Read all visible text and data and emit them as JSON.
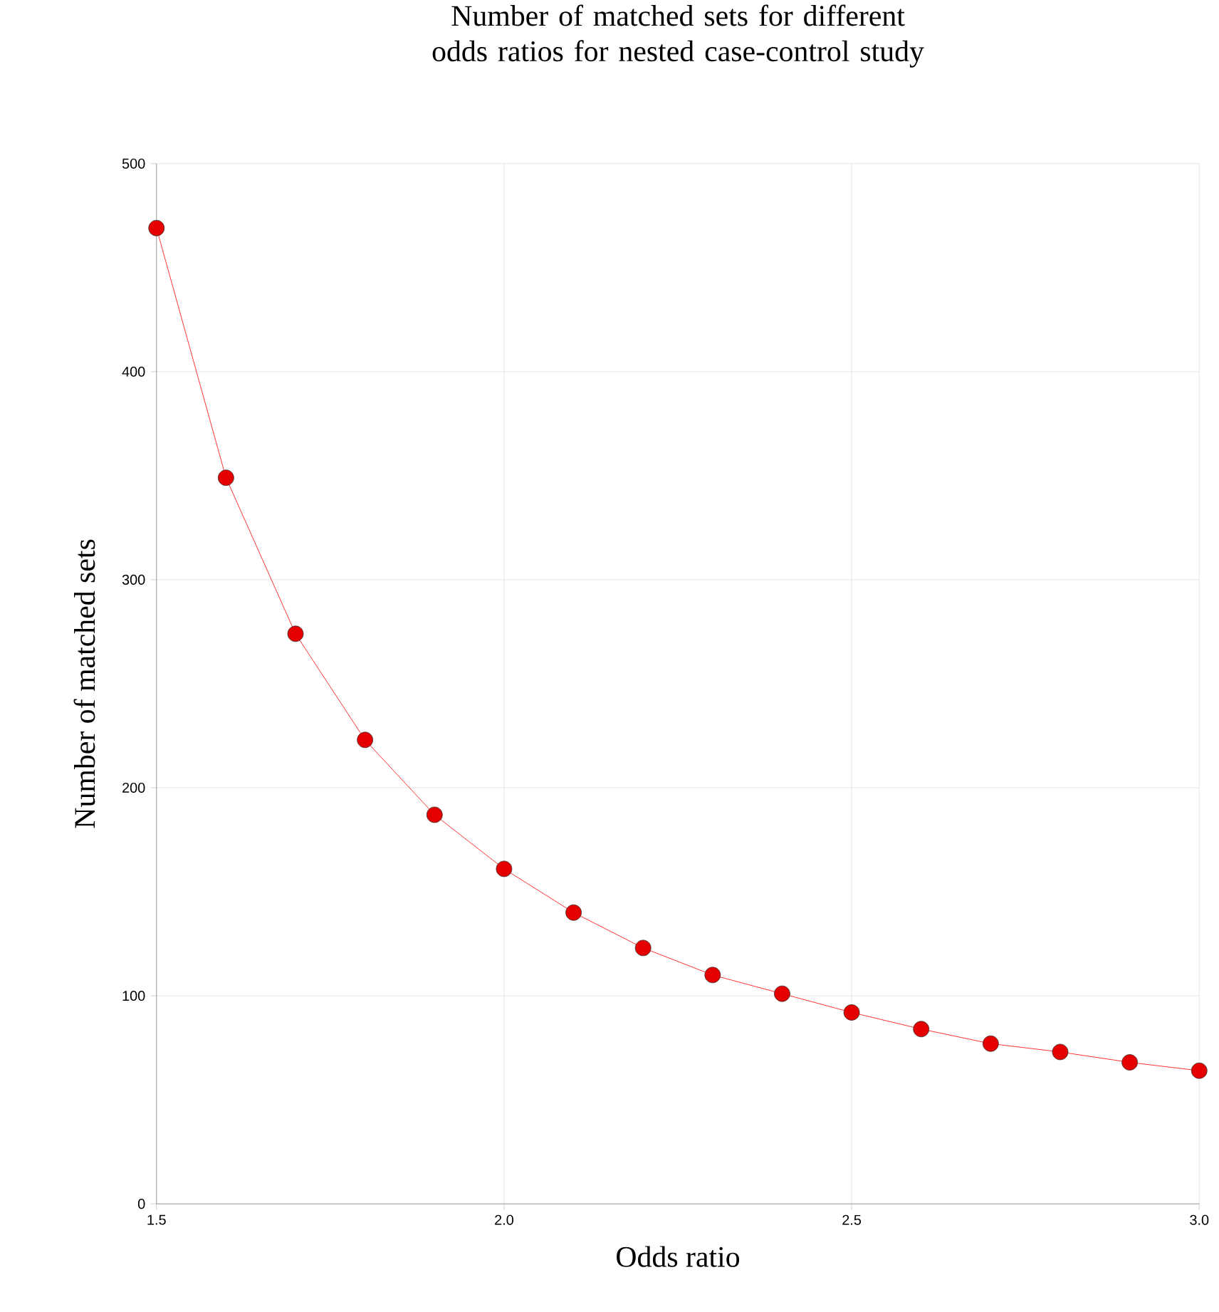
{
  "chart_data": {
    "type": "line",
    "title": "Number of matched sets for different odds ratios for nested case-control study",
    "xlabel": "Odds ratio",
    "ylabel": "Number of matched sets",
    "x": [
      1.5,
      1.6,
      1.7,
      1.8,
      1.9,
      2.0,
      2.1,
      2.2,
      2.3,
      2.4,
      2.5,
      2.6,
      2.7,
      2.8,
      2.9,
      3.0
    ],
    "values": [
      469,
      349,
      274,
      223,
      187,
      161,
      140,
      123,
      110,
      101,
      92,
      84,
      77,
      73,
      68,
      64
    ],
    "color": "#ff0000",
    "marker": "circle",
    "line_style": "solid",
    "grid": true,
    "xlim": [
      1.5,
      3.0
    ],
    "xticks": [
      {
        "value": 1.5,
        "label": "1.5"
      },
      {
        "value": 2.0,
        "label": "2.0"
      },
      {
        "value": 2.5,
        "label": "2.5"
      },
      {
        "value": 3.0,
        "label": "3.0"
      }
    ],
    "ylim": [
      0,
      500
    ],
    "yticks": [
      0,
      100,
      200,
      300,
      400,
      500
    ]
  }
}
